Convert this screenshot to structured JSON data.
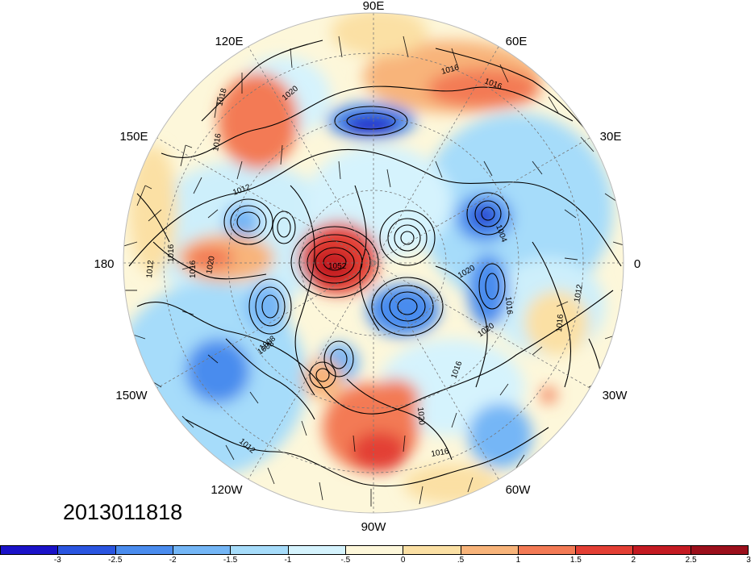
{
  "map": {
    "projection": "north-polar-stereographic",
    "longitude_labels": [
      "90E",
      "60E",
      "30E",
      "0",
      "30W",
      "60W",
      "90W",
      "120W",
      "150W",
      "180",
      "150E",
      "120E"
    ],
    "contour_labels": [
      "1016",
      "1016",
      "1020",
      "1018",
      "1016",
      "1012",
      "1016",
      "1016",
      "1012",
      "1020",
      "1052",
      "1008",
      "1004",
      "1020",
      "1016",
      "1012",
      "1016",
      "1016",
      "1020",
      "1008",
      "1012",
      "1016",
      "1020"
    ],
    "timestamp": "2013011818"
  },
  "colorbar": {
    "colors": [
      "#1a12c8",
      "#2a55e0",
      "#4a8cee",
      "#74b6f6",
      "#a6dcfa",
      "#d5f3fd",
      "#fdf7da",
      "#fbe0a4",
      "#f8b47a",
      "#f37a55",
      "#e33f34",
      "#c41a22",
      "#9b0f1b"
    ],
    "tick_labels": [
      "-3",
      "-2.5",
      "-2",
      "-1.5",
      "-1",
      "-.5",
      "0",
      ".5",
      "1",
      "1.5",
      "2",
      "2.5",
      "3"
    ]
  }
}
